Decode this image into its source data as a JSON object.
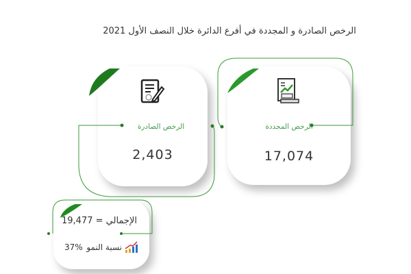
{
  "title": "الرخص الصادرة و المجددة في أفرع الدائرة خلال النصف الأول 2021",
  "cards": [
    {
      "label": "الرخص الصادرة",
      "value": "2,403",
      "icon": "document-edit-icon"
    },
    {
      "label": "الرخص المجددة",
      "value": "17,074",
      "icon": "report-chart-scroll-icon"
    }
  ],
  "summary": {
    "total_text": "الإجمالي = 19,477",
    "growth_label": "نسبة النمو",
    "growth_value": "37%",
    "icon": "growth-bar-chart-icon"
  },
  "colors": {
    "accent": "#3a9a3a",
    "leaf": "#1f7a1f"
  }
}
